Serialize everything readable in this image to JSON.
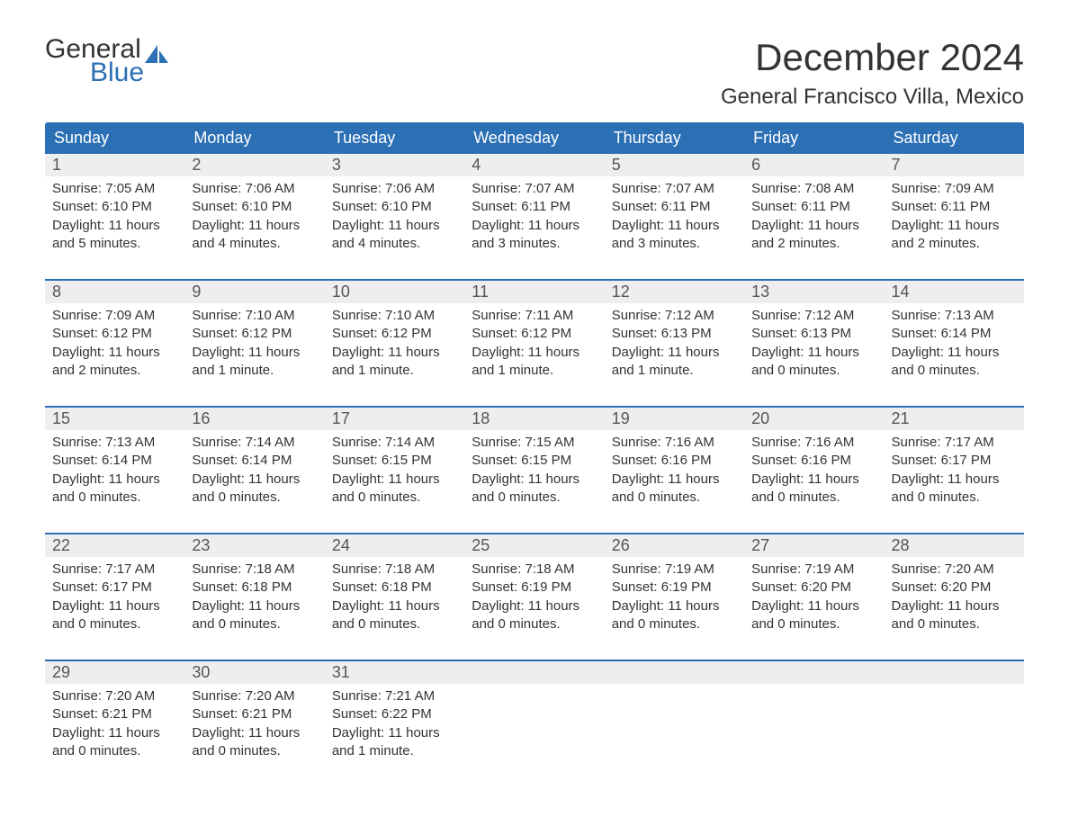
{
  "logo": {
    "text1": "General",
    "text2": "Blue",
    "icon_color": "#2b6fb5"
  },
  "title": "December 2024",
  "subtitle": "General Francisco Villa, Mexico",
  "colors": {
    "header_bg": "#2b6fb5",
    "header_text": "#ffffff",
    "daynum_bg": "#eeeeee",
    "rule": "#2b6fb5",
    "body_text": "#333333"
  },
  "day_headers": [
    "Sunday",
    "Monday",
    "Tuesday",
    "Wednesday",
    "Thursday",
    "Friday",
    "Saturday"
  ],
  "weeks": [
    [
      {
        "n": "1",
        "sunrise": "Sunrise: 7:05 AM",
        "sunset": "Sunset: 6:10 PM",
        "d1": "Daylight: 11 hours",
        "d2": "and 5 minutes."
      },
      {
        "n": "2",
        "sunrise": "Sunrise: 7:06 AM",
        "sunset": "Sunset: 6:10 PM",
        "d1": "Daylight: 11 hours",
        "d2": "and 4 minutes."
      },
      {
        "n": "3",
        "sunrise": "Sunrise: 7:06 AM",
        "sunset": "Sunset: 6:10 PM",
        "d1": "Daylight: 11 hours",
        "d2": "and 4 minutes."
      },
      {
        "n": "4",
        "sunrise": "Sunrise: 7:07 AM",
        "sunset": "Sunset: 6:11 PM",
        "d1": "Daylight: 11 hours",
        "d2": "and 3 minutes."
      },
      {
        "n": "5",
        "sunrise": "Sunrise: 7:07 AM",
        "sunset": "Sunset: 6:11 PM",
        "d1": "Daylight: 11 hours",
        "d2": "and 3 minutes."
      },
      {
        "n": "6",
        "sunrise": "Sunrise: 7:08 AM",
        "sunset": "Sunset: 6:11 PM",
        "d1": "Daylight: 11 hours",
        "d2": "and 2 minutes."
      },
      {
        "n": "7",
        "sunrise": "Sunrise: 7:09 AM",
        "sunset": "Sunset: 6:11 PM",
        "d1": "Daylight: 11 hours",
        "d2": "and 2 minutes."
      }
    ],
    [
      {
        "n": "8",
        "sunrise": "Sunrise: 7:09 AM",
        "sunset": "Sunset: 6:12 PM",
        "d1": "Daylight: 11 hours",
        "d2": "and 2 minutes."
      },
      {
        "n": "9",
        "sunrise": "Sunrise: 7:10 AM",
        "sunset": "Sunset: 6:12 PM",
        "d1": "Daylight: 11 hours",
        "d2": "and 1 minute."
      },
      {
        "n": "10",
        "sunrise": "Sunrise: 7:10 AM",
        "sunset": "Sunset: 6:12 PM",
        "d1": "Daylight: 11 hours",
        "d2": "and 1 minute."
      },
      {
        "n": "11",
        "sunrise": "Sunrise: 7:11 AM",
        "sunset": "Sunset: 6:12 PM",
        "d1": "Daylight: 11 hours",
        "d2": "and 1 minute."
      },
      {
        "n": "12",
        "sunrise": "Sunrise: 7:12 AM",
        "sunset": "Sunset: 6:13 PM",
        "d1": "Daylight: 11 hours",
        "d2": "and 1 minute."
      },
      {
        "n": "13",
        "sunrise": "Sunrise: 7:12 AM",
        "sunset": "Sunset: 6:13 PM",
        "d1": "Daylight: 11 hours",
        "d2": "and 0 minutes."
      },
      {
        "n": "14",
        "sunrise": "Sunrise: 7:13 AM",
        "sunset": "Sunset: 6:14 PM",
        "d1": "Daylight: 11 hours",
        "d2": "and 0 minutes."
      }
    ],
    [
      {
        "n": "15",
        "sunrise": "Sunrise: 7:13 AM",
        "sunset": "Sunset: 6:14 PM",
        "d1": "Daylight: 11 hours",
        "d2": "and 0 minutes."
      },
      {
        "n": "16",
        "sunrise": "Sunrise: 7:14 AM",
        "sunset": "Sunset: 6:14 PM",
        "d1": "Daylight: 11 hours",
        "d2": "and 0 minutes."
      },
      {
        "n": "17",
        "sunrise": "Sunrise: 7:14 AM",
        "sunset": "Sunset: 6:15 PM",
        "d1": "Daylight: 11 hours",
        "d2": "and 0 minutes."
      },
      {
        "n": "18",
        "sunrise": "Sunrise: 7:15 AM",
        "sunset": "Sunset: 6:15 PM",
        "d1": "Daylight: 11 hours",
        "d2": "and 0 minutes."
      },
      {
        "n": "19",
        "sunrise": "Sunrise: 7:16 AM",
        "sunset": "Sunset: 6:16 PM",
        "d1": "Daylight: 11 hours",
        "d2": "and 0 minutes."
      },
      {
        "n": "20",
        "sunrise": "Sunrise: 7:16 AM",
        "sunset": "Sunset: 6:16 PM",
        "d1": "Daylight: 11 hours",
        "d2": "and 0 minutes."
      },
      {
        "n": "21",
        "sunrise": "Sunrise: 7:17 AM",
        "sunset": "Sunset: 6:17 PM",
        "d1": "Daylight: 11 hours",
        "d2": "and 0 minutes."
      }
    ],
    [
      {
        "n": "22",
        "sunrise": "Sunrise: 7:17 AM",
        "sunset": "Sunset: 6:17 PM",
        "d1": "Daylight: 11 hours",
        "d2": "and 0 minutes."
      },
      {
        "n": "23",
        "sunrise": "Sunrise: 7:18 AM",
        "sunset": "Sunset: 6:18 PM",
        "d1": "Daylight: 11 hours",
        "d2": "and 0 minutes."
      },
      {
        "n": "24",
        "sunrise": "Sunrise: 7:18 AM",
        "sunset": "Sunset: 6:18 PM",
        "d1": "Daylight: 11 hours",
        "d2": "and 0 minutes."
      },
      {
        "n": "25",
        "sunrise": "Sunrise: 7:18 AM",
        "sunset": "Sunset: 6:19 PM",
        "d1": "Daylight: 11 hours",
        "d2": "and 0 minutes."
      },
      {
        "n": "26",
        "sunrise": "Sunrise: 7:19 AM",
        "sunset": "Sunset: 6:19 PM",
        "d1": "Daylight: 11 hours",
        "d2": "and 0 minutes."
      },
      {
        "n": "27",
        "sunrise": "Sunrise: 7:19 AM",
        "sunset": "Sunset: 6:20 PM",
        "d1": "Daylight: 11 hours",
        "d2": "and 0 minutes."
      },
      {
        "n": "28",
        "sunrise": "Sunrise: 7:20 AM",
        "sunset": "Sunset: 6:20 PM",
        "d1": "Daylight: 11 hours",
        "d2": "and 0 minutes."
      }
    ],
    [
      {
        "n": "29",
        "sunrise": "Sunrise: 7:20 AM",
        "sunset": "Sunset: 6:21 PM",
        "d1": "Daylight: 11 hours",
        "d2": "and 0 minutes."
      },
      {
        "n": "30",
        "sunrise": "Sunrise: 7:20 AM",
        "sunset": "Sunset: 6:21 PM",
        "d1": "Daylight: 11 hours",
        "d2": "and 0 minutes."
      },
      {
        "n": "31",
        "sunrise": "Sunrise: 7:21 AM",
        "sunset": "Sunset: 6:22 PM",
        "d1": "Daylight: 11 hours",
        "d2": "and 1 minute."
      },
      null,
      null,
      null,
      null
    ]
  ]
}
